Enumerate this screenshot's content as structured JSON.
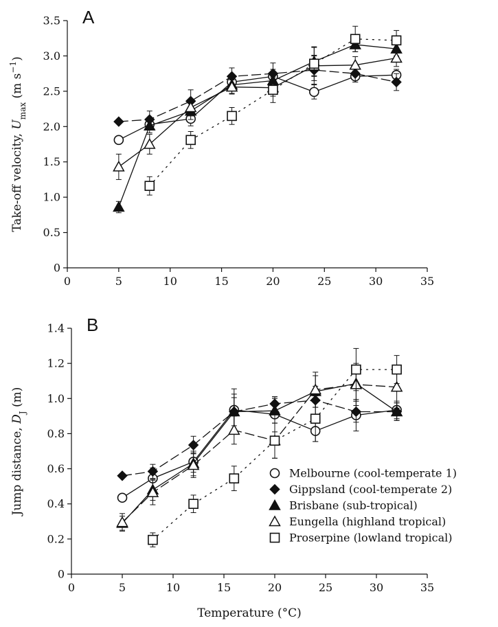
{
  "chart_data": [
    {
      "type": "line",
      "panel_label": "A",
      "ylabel_prefix": "Take-off velocity, ",
      "ylabel_symbol": "U",
      "ylabel_subscript": "max",
      "ylabel_unit_prefix": " (m s",
      "ylabel_unit_sup": "−1",
      "ylabel_unit_suffix": ")",
      "xlim": [
        0,
        35
      ],
      "ylim": [
        0,
        3.5
      ],
      "x_ticks": [
        "0",
        "5",
        "10",
        "15",
        "20",
        "25",
        "30",
        "35"
      ],
      "y_ticks": [
        "0",
        "0.5",
        "1.0",
        "1.5",
        "2.0",
        "2.5",
        "3.0",
        "3.5"
      ],
      "series": [
        {
          "name": "Melbourne (cool-temperate 1)",
          "marker": "circle-open",
          "line": "solid",
          "x": [
            5,
            8,
            12,
            16,
            20,
            24,
            28,
            32
          ],
          "y": [
            1.81,
            2.03,
            2.11,
            2.63,
            2.71,
            2.49,
            2.71,
            2.73
          ],
          "err": [
            0,
            0.08,
            0.1,
            0.1,
            0.1,
            0.1,
            0.08,
            0.08
          ]
        },
        {
          "name": "Gippsland (cool-temperate 2)",
          "marker": "diamond-filled",
          "line": "dashed",
          "x": [
            5,
            8,
            12,
            16,
            20,
            24,
            28,
            32
          ],
          "y": [
            2.07,
            2.1,
            2.36,
            2.71,
            2.75,
            2.8,
            2.75,
            2.63
          ],
          "err": [
            0,
            0.12,
            0.16,
            0.12,
            0.15,
            0.2,
            0.12,
            0.12
          ]
        },
        {
          "name": "Brisbane (sub-tropical)",
          "marker": "triangle-filled",
          "line": "solid",
          "x": [
            5,
            8,
            12,
            16,
            20,
            24,
            28,
            32
          ],
          "y": [
            0.86,
            2.01,
            2.22,
            2.59,
            2.65,
            2.92,
            3.16,
            3.1
          ],
          "err": [
            0.08,
            0.1,
            0.12,
            0.12,
            0.1,
            0.2,
            0.1,
            0.1
          ]
        },
        {
          "name": "Eungella (highland tropical)",
          "marker": "triangle-open",
          "line": "solid",
          "x": [
            5,
            8,
            12,
            16,
            20,
            24,
            28,
            32
          ],
          "y": [
            1.43,
            1.75,
            2.27,
            2.56,
            2.55,
            2.86,
            2.87,
            2.97
          ],
          "err": [
            0.18,
            0.14,
            0.12,
            0.1,
            0.12,
            0.15,
            0.12,
            0.12
          ]
        },
        {
          "name": "Proserpine (lowland tropical)",
          "marker": "square-open",
          "line": "dotted",
          "x": [
            8,
            12,
            16,
            20,
            24,
            28,
            32
          ],
          "y": [
            1.16,
            1.81,
            2.15,
            2.52,
            2.89,
            3.24,
            3.22
          ],
          "err": [
            0.13,
            0.12,
            0.12,
            0.18,
            0.24,
            0.18,
            0.14
          ]
        }
      ]
    },
    {
      "type": "line",
      "panel_label": "B",
      "ylabel_prefix": "Jump distance, ",
      "ylabel_symbol": "D",
      "ylabel_subscript": "J",
      "ylabel_unit_prefix": " (m)",
      "ylabel_unit_sup": "",
      "ylabel_unit_suffix": "",
      "xlabel": "Temperature (°C)",
      "xlim": [
        0,
        35
      ],
      "ylim": [
        0,
        1.4
      ],
      "x_ticks": [
        "0",
        "5",
        "10",
        "15",
        "20",
        "25",
        "30",
        "35"
      ],
      "y_ticks": [
        "0",
        "0.2",
        "0.4",
        "0.6",
        "0.8",
        "1.0",
        "1.2",
        "1.4"
      ],
      "series": [
        {
          "name": "Melbourne (cool-temperate 1)",
          "marker": "circle-open",
          "line": "solid",
          "x": [
            5,
            8,
            12,
            16,
            20,
            24,
            28,
            32
          ],
          "y": [
            0.435,
            0.545,
            0.64,
            0.935,
            0.91,
            0.815,
            0.905,
            0.935
          ],
          "err": [
            0,
            0.06,
            0.06,
            0.12,
            0.1,
            0.06,
            0.09,
            0.05
          ]
        },
        {
          "name": "Gippsland (cool-temperate 2)",
          "marker": "diamond-filled",
          "line": "dashed",
          "x": [
            5,
            8,
            12,
            16,
            20,
            24,
            28,
            32
          ],
          "y": [
            0.56,
            0.585,
            0.735,
            0.925,
            0.97,
            0.99,
            0.925,
            0.925
          ],
          "err": [
            0,
            0.04,
            0.05,
            0.08,
            0.04,
            0.08,
            0.06,
            0.05
          ]
        },
        {
          "name": "Brisbane (sub-tropical)",
          "marker": "triangle-filled",
          "line": "solid",
          "x": [
            5,
            8,
            12,
            16,
            20,
            24,
            28,
            32
          ],
          "y": [
            0.29,
            0.48,
            0.63,
            0.925,
            0.93,
            1.04,
            1.085,
            0.925
          ],
          "err": [
            0.04,
            0.06,
            0.07,
            0.1,
            0.07,
            0.09,
            0.1,
            0.05
          ]
        },
        {
          "name": "Eungella (highland tropical)",
          "marker": "triangle-open",
          "line": "dashed",
          "x": [
            5,
            8,
            12,
            16,
            20,
            24,
            28,
            32
          ],
          "y": [
            0.295,
            0.465,
            0.62,
            0.82,
            0.76,
            1.05,
            1.08,
            1.065
          ],
          "err": [
            0.05,
            0.07,
            0.07,
            0.08,
            0.1,
            0.1,
            0.12,
            0.12
          ]
        },
        {
          "name": "Proserpine (lowland tropical)",
          "marker": "square-open",
          "line": "dotted",
          "x": [
            8,
            12,
            16,
            20,
            24,
            28,
            32
          ],
          "y": [
            0.195,
            0.4,
            0.545,
            0.76,
            0.885,
            1.165,
            1.165
          ],
          "err": [
            0.04,
            0.05,
            0.07,
            0.1,
            0.13,
            0.12,
            0.08
          ]
        }
      ]
    }
  ],
  "legend": {
    "placement": "lower-right of panel B",
    "items": [
      {
        "label": "Melbourne (cool-temperate 1)",
        "marker": "circle-open"
      },
      {
        "label": "Gippsland (cool-temperate 2)",
        "marker": "diamond-filled"
      },
      {
        "label": "Brisbane (sub-tropical)",
        "marker": "triangle-filled"
      },
      {
        "label": "Eungella (highland tropical)",
        "marker": "triangle-open"
      },
      {
        "label": "Proserpine (lowland tropical)",
        "marker": "square-open"
      }
    ]
  },
  "colors": {
    "ink": "#111111",
    "background": "#ffffff"
  }
}
